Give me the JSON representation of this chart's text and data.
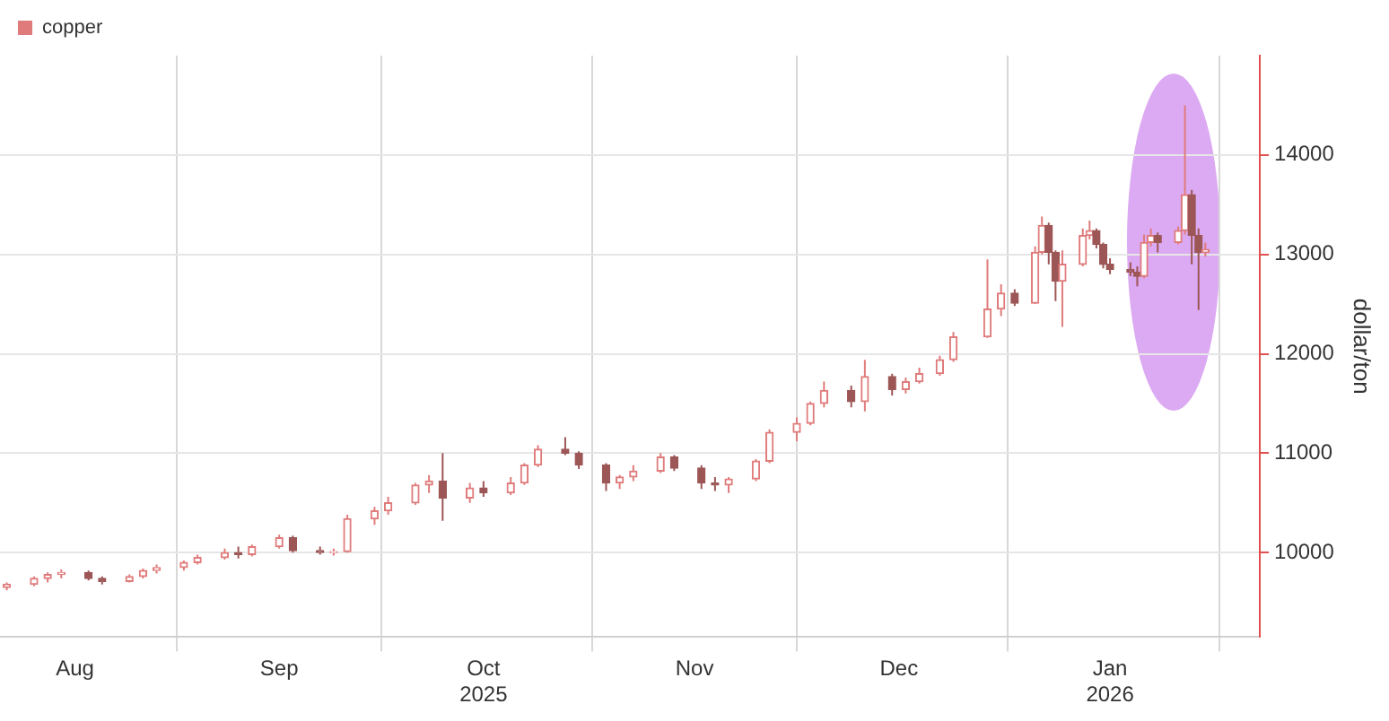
{
  "chart_data": {
    "type": "candlestick",
    "ylabel": "dollar/ton",
    "legend": "top left",
    "grid": true,
    "xlim": [
      "2025-08-06",
      "2026-02-07"
    ],
    "xticks": [
      {
        "value": "2025-08-17",
        "label": "Aug"
      },
      {
        "value": "2025-09-01",
        "label": null
      },
      {
        "value": "2025-09-16",
        "label": "Sep"
      },
      {
        "value": "2025-10-01",
        "label": null
      },
      {
        "value": "2025-10-16",
        "label": "Oct\n2025"
      },
      {
        "value": "2025-11-01",
        "label": null
      },
      {
        "value": "2025-11-16",
        "label": "Nov"
      },
      {
        "value": "2025-12-01",
        "label": null
      },
      {
        "value": "2025-12-16",
        "label": "Dec"
      },
      {
        "value": "2026-01-01",
        "label": null
      },
      {
        "value": "2026-01-16",
        "label": "Jan\n2026"
      },
      {
        "value": "2026-02-01",
        "label": null
      }
    ],
    "ylim": [
      9150,
      15000
    ],
    "yticks": [
      10000,
      11000,
      12000,
      13000,
      14000
    ],
    "x": [
      "2025-08-07",
      "2025-08-11",
      "2025-08-13",
      "2025-08-15",
      "2025-08-19",
      "2025-08-21",
      "2025-08-25",
      "2025-08-27",
      "2025-08-29",
      "2025-09-02",
      "2025-09-04",
      "2025-09-08",
      "2025-09-10",
      "2025-09-12",
      "2025-09-16",
      "2025-09-18",
      "2025-09-22",
      "2025-09-24",
      "2025-09-26",
      "2025-09-30",
      "2025-10-02",
      "2025-10-06",
      "2025-10-08",
      "2025-10-10",
      "2025-10-14",
      "2025-10-16",
      "2025-10-20",
      "2025-10-22",
      "2025-10-24",
      "2025-10-28",
      "2025-10-30",
      "2025-11-03",
      "2025-11-05",
      "2025-11-07",
      "2025-11-11",
      "2025-11-13",
      "2025-11-17",
      "2025-11-19",
      "2025-11-21",
      "2025-11-25",
      "2025-11-27",
      "2025-12-01",
      "2025-12-03",
      "2025-12-05",
      "2025-12-09",
      "2025-12-11",
      "2025-12-15",
      "2025-12-17",
      "2025-12-19",
      "2025-12-22",
      "2025-12-24",
      "2025-12-29",
      "2025-12-31",
      "2026-01-02",
      "2026-01-05",
      "2026-01-06",
      "2026-01-07",
      "2026-01-08",
      "2026-01-09",
      "2026-01-12",
      "2026-01-13",
      "2026-01-14",
      "2026-01-15",
      "2026-01-16",
      "2026-01-19",
      "2026-01-20",
      "2026-01-21",
      "2026-01-22",
      "2026-01-23",
      "2026-01-26",
      "2026-01-27",
      "2026-01-28",
      "2026-01-29",
      "2026-01-30"
    ],
    "series": [
      {
        "name": "copper",
        "colors": [
          "#e07b7b",
          "#e07b7b",
          "#e07b7b",
          "#e07b7b",
          "#9d5656",
          "#9d5656",
          "#e07b7b",
          "#e07b7b",
          "#e07b7b",
          "#e07b7b",
          "#e07b7b",
          "#e07b7b",
          "#9d5656",
          "#e07b7b",
          "#e07b7b",
          "#9d5656",
          "#9d5656",
          "#e07b7b",
          "#e07b7b",
          "#e07b7b",
          "#e07b7b",
          "#e07b7b",
          "#e07b7b",
          "#9d5656",
          "#e07b7b",
          "#9d5656",
          "#e07b7b",
          "#e07b7b",
          "#e07b7b",
          "#9d5656",
          "#9d5656",
          "#9d5656",
          "#e07b7b",
          "#e07b7b",
          "#e07b7b",
          "#9d5656",
          "#9d5656",
          "#9d5656",
          "#e07b7b",
          "#e07b7b",
          "#e07b7b",
          "#e07b7b",
          "#e07b7b",
          "#e07b7b",
          "#9d5656",
          "#e07b7b",
          "#9d5656",
          "#e07b7b",
          "#e07b7b",
          "#e07b7b",
          "#e07b7b",
          "#e07b7b",
          "#e07b7b",
          "#9d5656",
          "#e07b7b",
          "#e07b7b",
          "#9d5656",
          "#9d5656",
          "#e07b7b",
          "#e07b7b",
          "#e07b7b",
          "#9d5656",
          "#9d5656",
          "#9d5656",
          "#9d5656",
          "#9d5656",
          "#e07b7b",
          "#e07b7b",
          "#9d5656",
          "#e07b7b",
          "#e07b7b",
          "#9d5656",
          "#9d5656",
          "#e07b7b"
        ],
        "ohlc": [
          [
            9650,
            9700,
            9620,
            9680
          ],
          [
            9680,
            9760,
            9660,
            9740
          ],
          [
            9740,
            9800,
            9700,
            9780
          ],
          [
            9780,
            9830,
            9740,
            9800
          ],
          [
            9800,
            9820,
            9720,
            9740
          ],
          [
            9740,
            9760,
            9680,
            9710
          ],
          [
            9710,
            9780,
            9700,
            9760
          ],
          [
            9760,
            9840,
            9740,
            9820
          ],
          [
            9820,
            9880,
            9790,
            9850
          ],
          [
            9850,
            9920,
            9820,
            9900
          ],
          [
            9900,
            9980,
            9880,
            9950
          ],
          [
            9950,
            10040,
            9930,
            10000
          ],
          [
            10000,
            10060,
            9940,
            9980
          ],
          [
            9980,
            10080,
            9960,
            10060
          ],
          [
            10060,
            10180,
            10040,
            10150
          ],
          [
            10150,
            10170,
            10000,
            10020
          ],
          [
            10020,
            10060,
            9980,
            10000
          ],
          [
            10000,
            10040,
            9970,
            10010
          ],
          [
            10010,
            10380,
            10000,
            10340
          ],
          [
            10340,
            10460,
            10280,
            10420
          ],
          [
            10420,
            10560,
            10380,
            10500
          ],
          [
            10500,
            10700,
            10480,
            10680
          ],
          [
            10680,
            10780,
            10600,
            10720
          ],
          [
            10720,
            11000,
            10320,
            10550
          ],
          [
            10550,
            10700,
            10500,
            10650
          ],
          [
            10650,
            10720,
            10560,
            10600
          ],
          [
            10600,
            10760,
            10580,
            10700
          ],
          [
            10700,
            10900,
            10680,
            10880
          ],
          [
            10880,
            11080,
            10860,
            11040
          ],
          [
            11040,
            11160,
            10980,
            11000
          ],
          [
            11000,
            11020,
            10840,
            10880
          ],
          [
            10880,
            10900,
            10620,
            10700
          ],
          [
            10700,
            10780,
            10640,
            10760
          ],
          [
            10760,
            10880,
            10720,
            10820
          ],
          [
            10820,
            11000,
            10800,
            10960
          ],
          [
            10960,
            10980,
            10820,
            10850
          ],
          [
            10850,
            10880,
            10640,
            10700
          ],
          [
            10700,
            10760,
            10620,
            10680
          ],
          [
            10680,
            10760,
            10600,
            10740
          ],
          [
            10740,
            10940,
            10720,
            10920
          ],
          [
            10920,
            11240,
            10900,
            11210
          ],
          [
            11210,
            11360,
            11120,
            11300
          ],
          [
            11300,
            11520,
            11280,
            11500
          ],
          [
            11500,
            11720,
            11460,
            11630
          ],
          [
            11630,
            11680,
            11460,
            11520
          ],
          [
            11520,
            11940,
            11420,
            11770
          ],
          [
            11770,
            11800,
            11580,
            11640
          ],
          [
            11640,
            11760,
            11600,
            11720
          ],
          [
            11720,
            11860,
            11700,
            11800
          ],
          [
            11800,
            11980,
            11780,
            11940
          ],
          [
            11940,
            12220,
            11920,
            12170
          ],
          [
            12170,
            12950,
            12160,
            12450
          ],
          [
            12450,
            12700,
            12380,
            12610
          ],
          [
            12610,
            12650,
            12480,
            12510
          ],
          [
            12510,
            13080,
            12500,
            13020
          ],
          [
            13020,
            13380,
            13000,
            13290
          ],
          [
            13290,
            13320,
            12900,
            13020
          ],
          [
            13020,
            13040,
            12530,
            12730
          ],
          [
            12730,
            13040,
            12270,
            12900
          ],
          [
            12900,
            13260,
            12880,
            13190
          ],
          [
            13190,
            13340,
            13150,
            13240
          ],
          [
            13240,
            13260,
            13060,
            13100
          ],
          [
            13100,
            13120,
            12860,
            12900
          ],
          [
            12900,
            12960,
            12800,
            12850
          ],
          [
            12850,
            12920,
            12780,
            12820
          ],
          [
            12820,
            12880,
            12680,
            12780
          ],
          [
            12780,
            13200,
            12760,
            13120
          ],
          [
            13120,
            13260,
            13080,
            13190
          ],
          [
            13190,
            13220,
            13020,
            13120
          ],
          [
            13120,
            13280,
            13100,
            13240
          ],
          [
            13240,
            14500,
            13200,
            13600
          ],
          [
            13600,
            13650,
            12900,
            13190
          ],
          [
            13190,
            13260,
            12440,
            13020
          ],
          [
            13020,
            13120,
            12980,
            13050
          ]
        ]
      }
    ]
  }
}
